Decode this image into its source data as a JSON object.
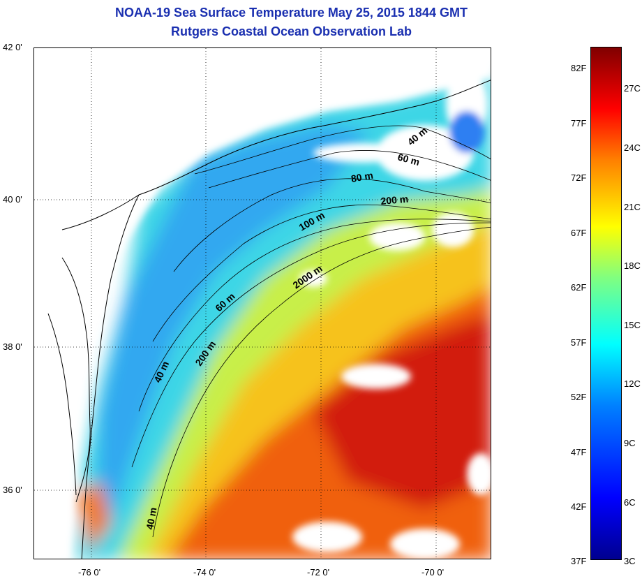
{
  "title": {
    "line1": "NOAA-19 Sea Surface Temperature May 25, 2015 1844 GMT",
    "line2": "Rutgers Coastal Ocean Observation Lab"
  },
  "map": {
    "lat_ticks": [
      "42 0'",
      "40 0'",
      "38 0'",
      "36 0'"
    ],
    "lon_ticks": [
      "-76 0'",
      "-74 0'",
      "-72 0'",
      "-70 0'"
    ],
    "contour_labels": [
      "40 m",
      "60 m",
      "80 m",
      "200 m",
      "100 m",
      "2000 m",
      "60 m",
      "40 m",
      "200 m",
      "40 m"
    ]
  },
  "colorbar": {
    "fahrenheit": [
      "82F",
      "77F",
      "72F",
      "67F",
      "62F",
      "57F",
      "52F",
      "47F",
      "42F",
      "37F"
    ],
    "celsius": [
      "27C",
      "24C",
      "21C",
      "18C",
      "15C",
      "12C",
      "9C",
      "6C",
      "3C"
    ]
  }
}
